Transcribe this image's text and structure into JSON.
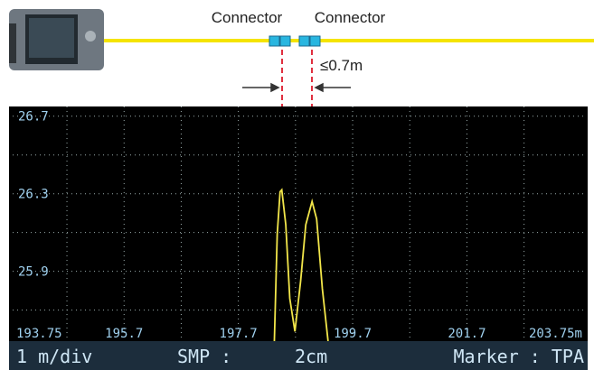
{
  "diagram": {
    "connector_labels": [
      "Connector",
      "Connector"
    ],
    "gap_label": "≤0.7m"
  },
  "status_bar": {
    "scale": "1 m/div",
    "smp_label": "SMP :",
    "smp_value": "2cm",
    "marker": "Marker : TPA"
  },
  "chart_data": {
    "type": "line",
    "color": "#f2e64a",
    "x": [
      198.33,
      198.38,
      198.43,
      198.46,
      198.53,
      198.6,
      198.69,
      198.79,
      198.88,
      198.99,
      199.07,
      199.17,
      199.27
    ],
    "values": [
      25.54,
      26.09,
      26.31,
      26.32,
      26.14,
      25.76,
      25.59,
      25.85,
      26.14,
      26.26,
      26.17,
      25.81,
      25.54
    ],
    "xlim": [
      193.75,
      203.75
    ],
    "ylim": [
      25.54,
      26.75
    ],
    "xticks": [
      193.75,
      195.7,
      197.7,
      199.7,
      201.7,
      {
        "value": 203.75,
        "label": "203.75m"
      }
    ],
    "yticks": [
      26.7,
      26.3,
      25.9
    ],
    "xgrid": [
      194.7,
      195.7,
      196.7,
      197.7,
      198.7,
      199.7,
      200.7,
      201.7,
      202.7
    ],
    "ygrid": [
      26.7,
      26.5,
      26.3,
      26.1,
      25.9,
      25.7
    ],
    "grid": true
  }
}
